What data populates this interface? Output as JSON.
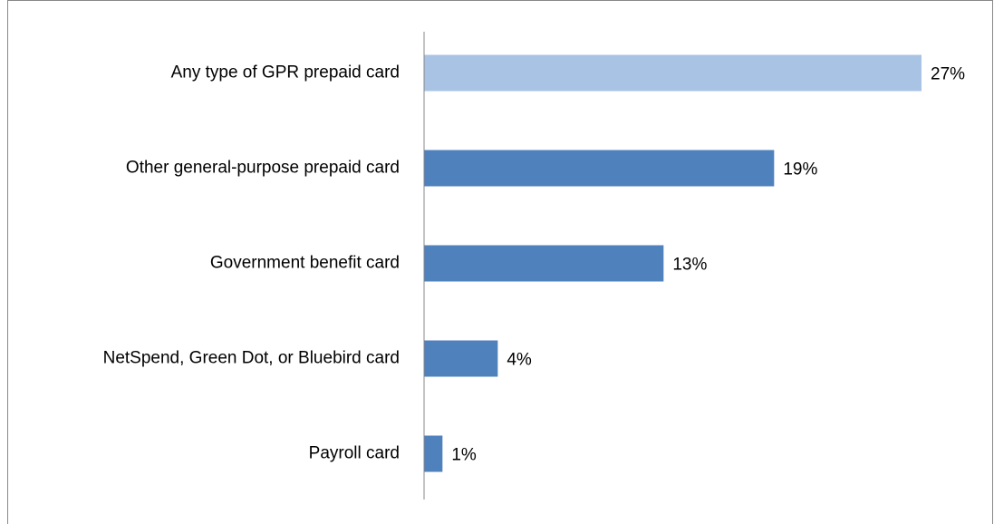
{
  "chart_data": {
    "type": "bar",
    "orientation": "horizontal",
    "categories": [
      "Any type of GPR prepaid card",
      "Other general-purpose prepaid card",
      "Government benefit card",
      "NetSpend, Green Dot, or Bluebird card",
      "Payroll card"
    ],
    "values": [
      27,
      19,
      13,
      4,
      1
    ],
    "value_labels": [
      "27%",
      "19%",
      "13%",
      "4%",
      "1%"
    ],
    "colors": [
      "#a9c3e4",
      "#4f81bd",
      "#4f81bd",
      "#4f81bd",
      "#4f81bd"
    ]
  }
}
